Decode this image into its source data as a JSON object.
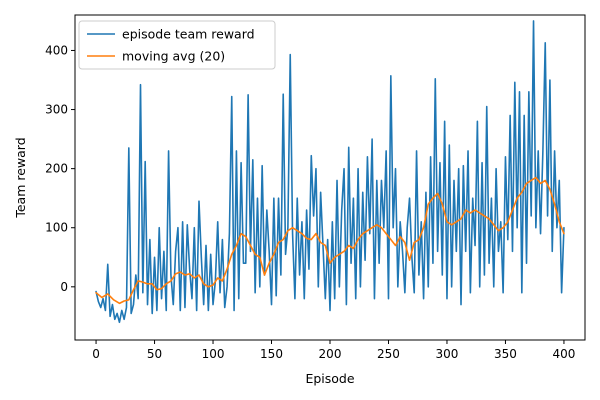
{
  "chart_data": {
    "type": "line",
    "title": "",
    "xlabel": "Episode",
    "ylabel": "Team reward",
    "xlim": [
      -18,
      418
    ],
    "ylim": [
      -90,
      460
    ],
    "x_ticks": [
      0,
      50,
      100,
      150,
      200,
      250,
      300,
      350,
      400
    ],
    "y_ticks": [
      0,
      100,
      200,
      300,
      400
    ],
    "grid": false,
    "legend_position": "top-left",
    "series": [
      {
        "name": "episode team reward",
        "color": "#1f77b4",
        "points": [
          [
            0,
            -8
          ],
          [
            2,
            -25
          ],
          [
            4,
            -35
          ],
          [
            6,
            -20
          ],
          [
            8,
            -40
          ],
          [
            10,
            38
          ],
          [
            12,
            -50
          ],
          [
            14,
            -30
          ],
          [
            16,
            -55
          ],
          [
            18,
            -45
          ],
          [
            20,
            -60
          ],
          [
            22,
            -40
          ],
          [
            24,
            -55
          ],
          [
            26,
            -35
          ],
          [
            28,
            235
          ],
          [
            30,
            -45
          ],
          [
            32,
            -30
          ],
          [
            34,
            20
          ],
          [
            36,
            -20
          ],
          [
            38,
            342
          ],
          [
            40,
            -10
          ],
          [
            42,
            212
          ],
          [
            44,
            -30
          ],
          [
            46,
            80
          ],
          [
            48,
            -45
          ],
          [
            50,
            50
          ],
          [
            52,
            -40
          ],
          [
            54,
            100
          ],
          [
            56,
            -20
          ],
          [
            58,
            60
          ],
          [
            60,
            -40
          ],
          [
            62,
            230
          ],
          [
            64,
            20
          ],
          [
            66,
            -30
          ],
          [
            68,
            60
          ],
          [
            70,
            100
          ],
          [
            72,
            -40
          ],
          [
            74,
            110
          ],
          [
            76,
            -35
          ],
          [
            78,
            105
          ],
          [
            80,
            30
          ],
          [
            82,
            -20
          ],
          [
            84,
            100
          ],
          [
            86,
            -40
          ],
          [
            88,
            145
          ],
          [
            90,
            50
          ],
          [
            92,
            -30
          ],
          [
            94,
            70
          ],
          [
            96,
            -40
          ],
          [
            98,
            55
          ],
          [
            100,
            -30
          ],
          [
            102,
            10
          ],
          [
            104,
            110
          ],
          [
            106,
            -10
          ],
          [
            108,
            80
          ],
          [
            110,
            -35
          ],
          [
            112,
            0
          ],
          [
            114,
            90
          ],
          [
            116,
            322
          ],
          [
            118,
            -40
          ],
          [
            120,
            230
          ],
          [
            122,
            -20
          ],
          [
            124,
            210
          ],
          [
            126,
            40
          ],
          [
            128,
            40
          ],
          [
            130,
            325
          ],
          [
            132,
            60
          ],
          [
            134,
            215
          ],
          [
            136,
            -10
          ],
          [
            138,
            150
          ],
          [
            140,
            0
          ],
          [
            142,
            205
          ],
          [
            144,
            20
          ],
          [
            146,
            130
          ],
          [
            148,
            60
          ],
          [
            150,
            -30
          ],
          [
            152,
            150
          ],
          [
            154,
            -15
          ],
          [
            156,
            150
          ],
          [
            158,
            20
          ],
          [
            160,
            326
          ],
          [
            162,
            55
          ],
          [
            164,
            100
          ],
          [
            166,
            393
          ],
          [
            168,
            90
          ],
          [
            170,
            -20
          ],
          [
            172,
            150
          ],
          [
            174,
            20
          ],
          [
            176,
            110
          ],
          [
            178,
            -20
          ],
          [
            180,
            130
          ],
          [
            182,
            30
          ],
          [
            184,
            222
          ],
          [
            186,
            120
          ],
          [
            188,
            200
          ],
          [
            190,
            0
          ],
          [
            192,
            160
          ],
          [
            194,
            70
          ],
          [
            196,
            -20
          ],
          [
            198,
            80
          ],
          [
            200,
            -40
          ],
          [
            202,
            110
          ],
          [
            204,
            -20
          ],
          [
            206,
            180
          ],
          [
            208,
            0
          ],
          [
            210,
            130
          ],
          [
            212,
            200
          ],
          [
            214,
            -30
          ],
          [
            216,
            236
          ],
          [
            218,
            40
          ],
          [
            220,
            150
          ],
          [
            222,
            -20
          ],
          [
            224,
            200
          ],
          [
            226,
            0
          ],
          [
            228,
            160
          ],
          [
            230,
            45
          ],
          [
            232,
            220
          ],
          [
            234,
            90
          ],
          [
            236,
            250
          ],
          [
            238,
            -20
          ],
          [
            240,
            180
          ],
          [
            242,
            40
          ],
          [
            244,
            180
          ],
          [
            246,
            100
          ],
          [
            248,
            230
          ],
          [
            250,
            -20
          ],
          [
            252,
            357
          ],
          [
            254,
            100
          ],
          [
            256,
            200
          ],
          [
            258,
            0
          ],
          [
            260,
            110
          ],
          [
            262,
            60
          ],
          [
            264,
            -10
          ],
          [
            266,
            100
          ],
          [
            268,
            150
          ],
          [
            270,
            50
          ],
          [
            272,
            -10
          ],
          [
            274,
            230
          ],
          [
            276,
            20
          ],
          [
            278,
            110
          ],
          [
            280,
            -20
          ],
          [
            282,
            160
          ],
          [
            284,
            0
          ],
          [
            286,
            220
          ],
          [
            288,
            40
          ],
          [
            290,
            352
          ],
          [
            292,
            60
          ],
          [
            294,
            210
          ],
          [
            296,
            20
          ],
          [
            298,
            280
          ],
          [
            300,
            -20
          ],
          [
            302,
            240
          ],
          [
            304,
            0
          ],
          [
            306,
            180
          ],
          [
            308,
            60
          ],
          [
            310,
            200
          ],
          [
            312,
            -30
          ],
          [
            314,
            205
          ],
          [
            316,
            60
          ],
          [
            318,
            230
          ],
          [
            320,
            -10
          ],
          [
            322,
            150
          ],
          [
            324,
            70
          ],
          [
            326,
            280
          ],
          [
            328,
            0
          ],
          [
            330,
            210
          ],
          [
            332,
            20
          ],
          [
            334,
            305
          ],
          [
            336,
            40
          ],
          [
            338,
            150
          ],
          [
            340,
            0
          ],
          [
            342,
            200
          ],
          [
            344,
            60
          ],
          [
            346,
            110
          ],
          [
            348,
            -10
          ],
          [
            350,
            220
          ],
          [
            352,
            80
          ],
          [
            354,
            290
          ],
          [
            356,
            60
          ],
          [
            358,
            346
          ],
          [
            360,
            100
          ],
          [
            362,
            330
          ],
          [
            364,
            -10
          ],
          [
            366,
            290
          ],
          [
            368,
            40
          ],
          [
            370,
            330
          ],
          [
            372,
            120
          ],
          [
            374,
            450
          ],
          [
            376,
            100
          ],
          [
            378,
            230
          ],
          [
            380,
            90
          ],
          [
            382,
            230
          ],
          [
            384,
            413
          ],
          [
            386,
            120
          ],
          [
            388,
            350
          ],
          [
            390,
            60
          ],
          [
            392,
            230
          ],
          [
            394,
            100
          ],
          [
            396,
            180
          ],
          [
            398,
            -10
          ],
          [
            400,
            100
          ]
        ]
      },
      {
        "name": "moving avg (20)",
        "color": "#ff7f0e",
        "points": [
          [
            0,
            -10
          ],
          [
            5,
            -18
          ],
          [
            10,
            -12
          ],
          [
            15,
            -22
          ],
          [
            20,
            -28
          ],
          [
            24,
            -24
          ],
          [
            28,
            -22
          ],
          [
            32,
            -5
          ],
          [
            36,
            10
          ],
          [
            40,
            8
          ],
          [
            44,
            5
          ],
          [
            48,
            5
          ],
          [
            52,
            -5
          ],
          [
            56,
            -3
          ],
          [
            60,
            5
          ],
          [
            64,
            10
          ],
          [
            68,
            22
          ],
          [
            72,
            25
          ],
          [
            76,
            20
          ],
          [
            80,
            22
          ],
          [
            84,
            15
          ],
          [
            88,
            20
          ],
          [
            92,
            5
          ],
          [
            96,
            0
          ],
          [
            100,
            3
          ],
          [
            104,
            15
          ],
          [
            108,
            10
          ],
          [
            112,
            30
          ],
          [
            116,
            55
          ],
          [
            120,
            70
          ],
          [
            124,
            90
          ],
          [
            128,
            85
          ],
          [
            132,
            70
          ],
          [
            136,
            55
          ],
          [
            140,
            50
          ],
          [
            144,
            20
          ],
          [
            148,
            40
          ],
          [
            152,
            55
          ],
          [
            156,
            75
          ],
          [
            160,
            80
          ],
          [
            164,
            95
          ],
          [
            168,
            100
          ],
          [
            172,
            95
          ],
          [
            176,
            90
          ],
          [
            180,
            82
          ],
          [
            184,
            80
          ],
          [
            188,
            90
          ],
          [
            192,
            75
          ],
          [
            196,
            70
          ],
          [
            200,
            40
          ],
          [
            204,
            50
          ],
          [
            208,
            55
          ],
          [
            212,
            60
          ],
          [
            216,
            70
          ],
          [
            220,
            65
          ],
          [
            224,
            80
          ],
          [
            228,
            90
          ],
          [
            232,
            95
          ],
          [
            236,
            100
          ],
          [
            240,
            105
          ],
          [
            244,
            100
          ],
          [
            248,
            90
          ],
          [
            252,
            80
          ],
          [
            256,
            70
          ],
          [
            260,
            85
          ],
          [
            264,
            75
          ],
          [
            268,
            45
          ],
          [
            272,
            75
          ],
          [
            276,
            80
          ],
          [
            280,
            100
          ],
          [
            284,
            140
          ],
          [
            288,
            150
          ],
          [
            292,
            158
          ],
          [
            296,
            140
          ],
          [
            300,
            110
          ],
          [
            304,
            105
          ],
          [
            308,
            110
          ],
          [
            312,
            115
          ],
          [
            316,
            130
          ],
          [
            320,
            125
          ],
          [
            324,
            130
          ],
          [
            328,
            125
          ],
          [
            332,
            120
          ],
          [
            336,
            115
          ],
          [
            340,
            105
          ],
          [
            344,
            95
          ],
          [
            348,
            100
          ],
          [
            352,
            110
          ],
          [
            356,
            130
          ],
          [
            360,
            150
          ],
          [
            364,
            160
          ],
          [
            368,
            175
          ],
          [
            372,
            180
          ],
          [
            376,
            185
          ],
          [
            380,
            175
          ],
          [
            384,
            180
          ],
          [
            388,
            165
          ],
          [
            392,
            140
          ],
          [
            396,
            110
          ],
          [
            400,
            90
          ]
        ]
      }
    ]
  }
}
